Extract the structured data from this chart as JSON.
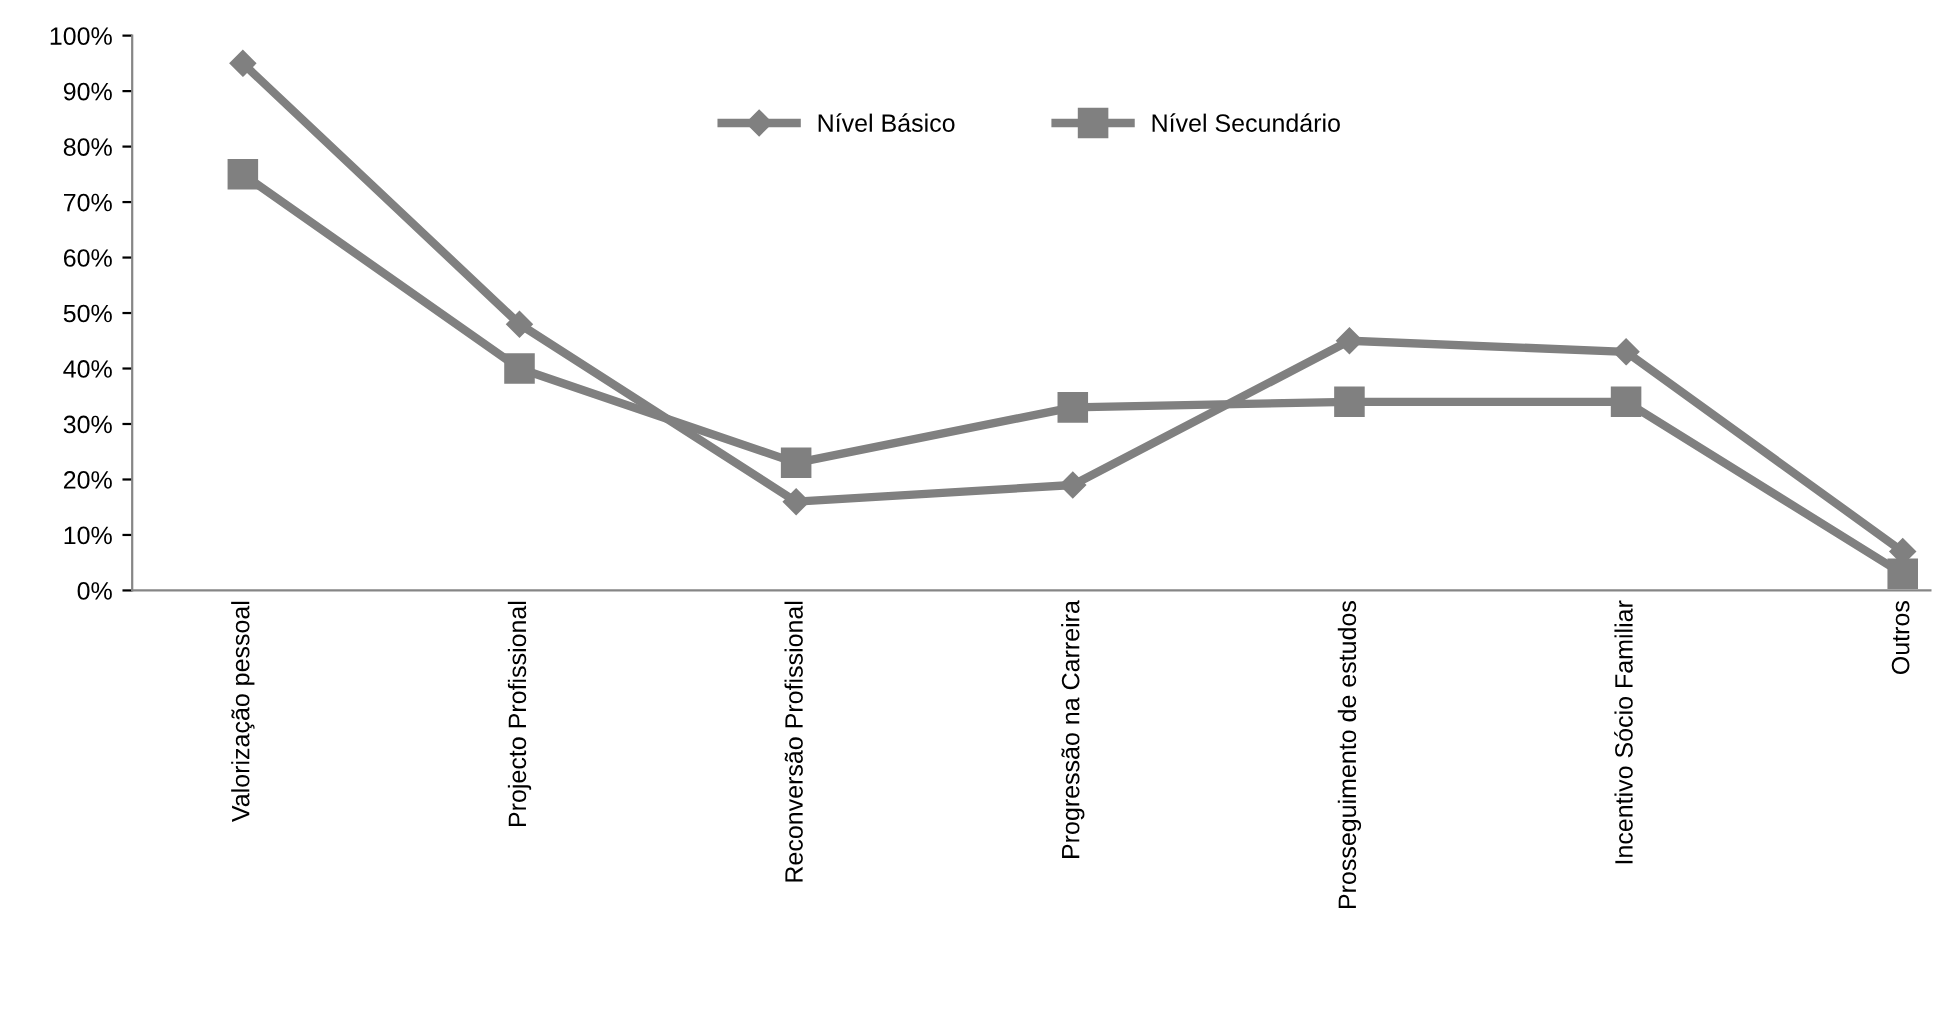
{
  "chart_data": {
    "type": "line",
    "categories": [
      "Valorização pessoal",
      "Projecto Profissional",
      "Reconversão Profissional",
      "Progressão na Carreira",
      "Prosseguimento de estudos",
      "Incentivo Sócio Familiar",
      "Outros"
    ],
    "series": [
      {
        "name": "Nível Básico",
        "color": "#808080",
        "marker": "diamond",
        "values": [
          95,
          48,
          16,
          19,
          45,
          43,
          7
        ]
      },
      {
        "name": "Nível Secundário",
        "color": "#808080",
        "marker": "square",
        "values": [
          75,
          40,
          23,
          33,
          34,
          34,
          3
        ]
      }
    ],
    "ylim": [
      0,
      100
    ],
    "yticks": [
      {
        "value": 0,
        "label": "0%"
      },
      {
        "value": 10,
        "label": "10%"
      },
      {
        "value": 20,
        "label": "20%"
      },
      {
        "value": 30,
        "label": "30%"
      },
      {
        "value": 40,
        "label": "40%"
      },
      {
        "value": 50,
        "label": "50%"
      },
      {
        "value": 60,
        "label": "60%"
      },
      {
        "value": 70,
        "label": "70%"
      },
      {
        "value": 80,
        "label": "80%"
      },
      {
        "value": 90,
        "label": "90%"
      },
      {
        "value": 100,
        "label": "100%"
      }
    ],
    "grid": false,
    "legend": "top",
    "line_style": "solid"
  }
}
